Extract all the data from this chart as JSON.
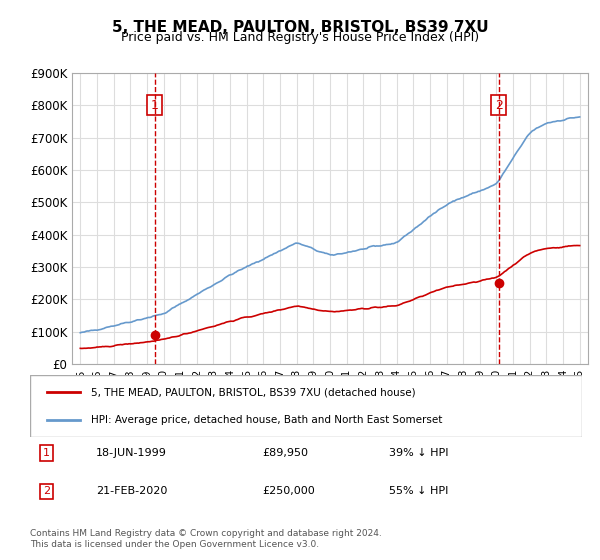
{
  "title": "5, THE MEAD, PAULTON, BRISTOL, BS39 7XU",
  "subtitle": "Price paid vs. HM Land Registry's House Price Index (HPI)",
  "hpi_color": "#6699cc",
  "price_color": "#cc0000",
  "marker1_date_x": 1999.46,
  "marker1_price": 89950,
  "marker2_date_x": 2020.13,
  "marker2_price": 250000,
  "legend_line1": "5, THE MEAD, PAULTON, BRISTOL, BS39 7XU (detached house)",
  "legend_line2": "HPI: Average price, detached house, Bath and North East Somerset",
  "annotation1": "18-JUN-1999        £89,950        39% ↓ HPI",
  "annotation2": "21-FEB-2020        £250,000        55% ↓ HPI",
  "footer": "Contains HM Land Registry data © Crown copyright and database right 2024.\nThis data is licensed under the Open Government Licence v3.0.",
  "ylim": [
    0,
    900000
  ],
  "xlim": [
    1994.5,
    2025.5
  ],
  "yticks": [
    0,
    100000,
    200000,
    300000,
    400000,
    500000,
    600000,
    700000,
    800000,
    900000
  ],
  "ytick_labels": [
    "£0",
    "£100K",
    "£200K",
    "£300K",
    "£400K",
    "£500K",
    "£600K",
    "£700K",
    "£800K",
    "£900K"
  ],
  "xtick_years": [
    1995,
    1996,
    1997,
    1998,
    1999,
    2000,
    2001,
    2002,
    2003,
    2004,
    2005,
    2006,
    2007,
    2008,
    2009,
    2010,
    2011,
    2012,
    2013,
    2014,
    2015,
    2016,
    2017,
    2018,
    2019,
    2020,
    2021,
    2022,
    2023,
    2024,
    2025
  ],
  "background_color": "#ffffff",
  "grid_color": "#dddddd"
}
